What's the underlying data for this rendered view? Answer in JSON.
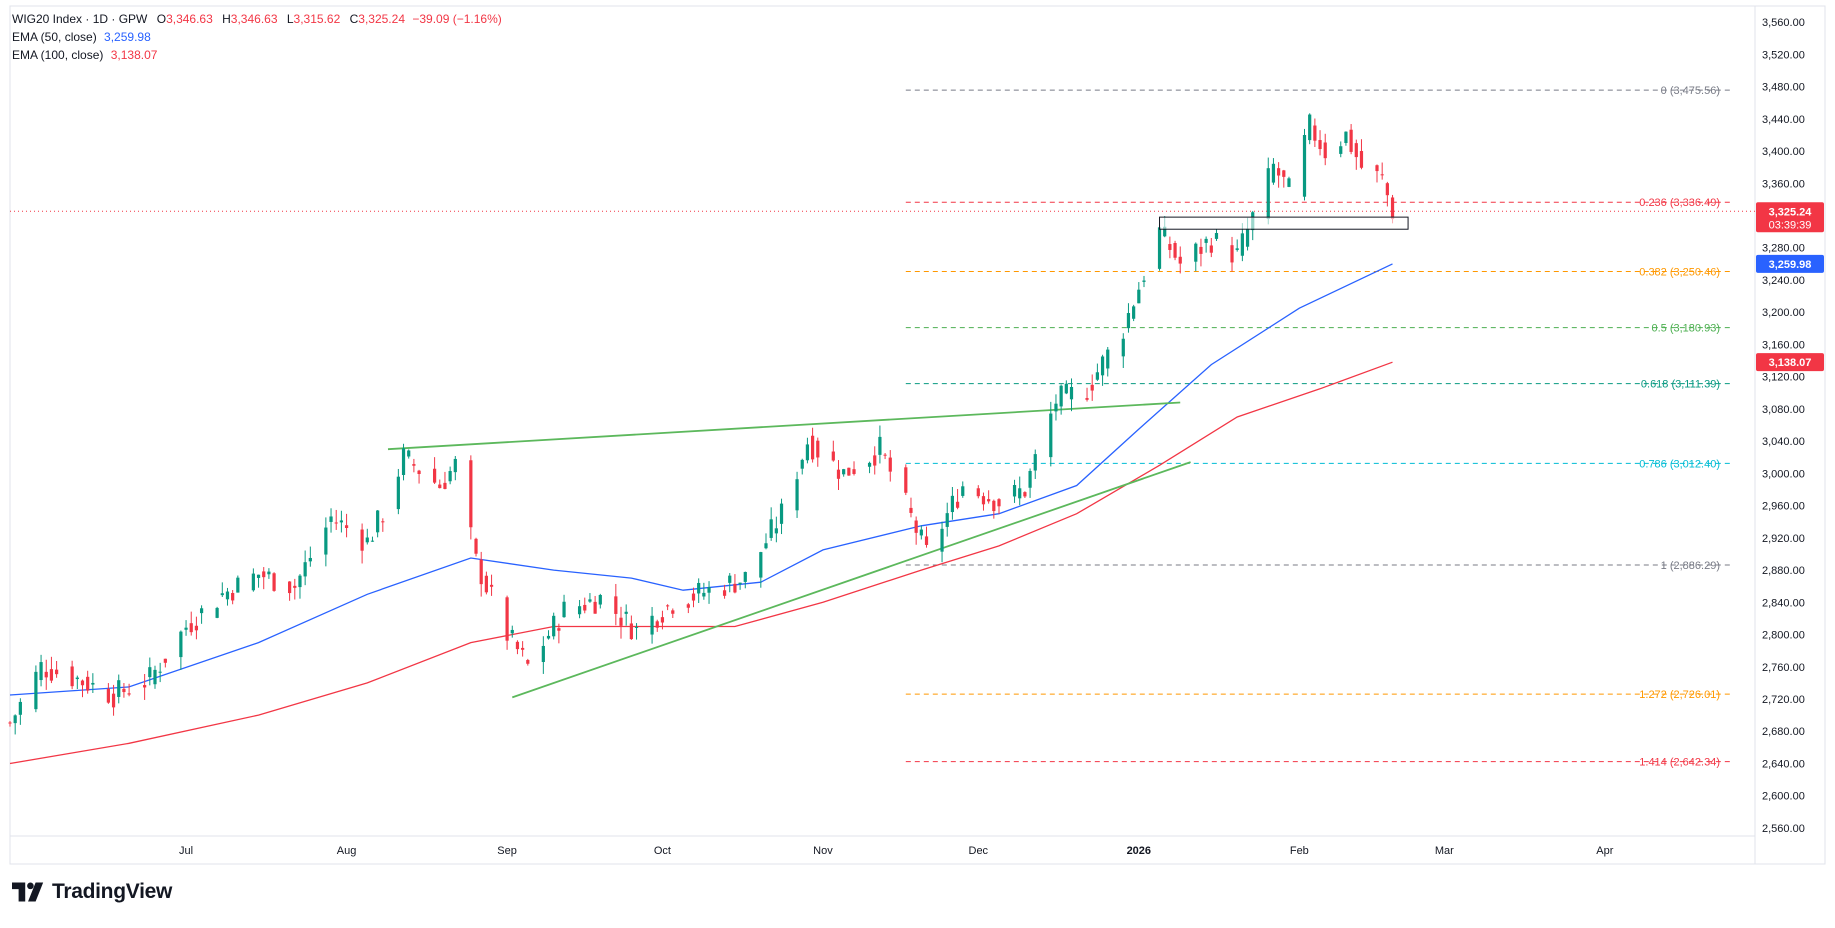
{
  "legend": {
    "symbol": "WIG20 Index · 1D · GPW",
    "open_label": "O",
    "open": "3,346.63",
    "high_label": "H",
    "high": "3,346.63",
    "low_label": "L",
    "low": "3,315.62",
    "close_label": "C",
    "close": "3,325.24",
    "change": "−39.09 (−1.16%)",
    "ema50_label": "EMA (50, close)",
    "ema50": "3,259.98",
    "ema100_label": "EMA (100, close)",
    "ema100": "3,138.07"
  },
  "brand": {
    "name": "TradingView"
  },
  "colors": {
    "up": "#089981",
    "down": "#f23645",
    "ema50": "#2962ff",
    "ema100": "#f23645",
    "trend": "#5cb85c"
  },
  "chart_data": {
    "type": "candlestick",
    "y_range": [
      2550,
      3580
    ],
    "y_ticks": [
      "3,560.00",
      "3,520.00",
      "3,480.00",
      "3,440.00",
      "3,400.00",
      "3,360.00",
      "3,320.00",
      "3,280.00",
      "3,240.00",
      "3,200.00",
      "3,160.00",
      "3,120.00",
      "3,080.00",
      "3,040.00",
      "3,000.00",
      "2,960.00",
      "2,920.00",
      "2,880.00",
      "2,840.00",
      "2,800.00",
      "2,760.00",
      "2,720.00",
      "2,680.00",
      "2,640.00",
      "2,600.00",
      "2,560.00"
    ],
    "y_tick_values": [
      3560,
      3520,
      3480,
      3440,
      3400,
      3360,
      3320,
      3280,
      3240,
      3200,
      3160,
      3120,
      3080,
      3040,
      3000,
      2960,
      2920,
      2880,
      2840,
      2800,
      2760,
      2720,
      2680,
      2640,
      2600,
      2560
    ],
    "x_range": [
      "2025-05-28",
      "2026-04-30"
    ],
    "x_ticks": [
      {
        "label": "Jul",
        "date": "2025-07-01",
        "bold": false
      },
      {
        "label": "Aug",
        "date": "2025-08-01",
        "bold": false
      },
      {
        "label": "Sep",
        "date": "2025-09-01",
        "bold": false
      },
      {
        "label": "Oct",
        "date": "2025-10-01",
        "bold": false
      },
      {
        "label": "Nov",
        "date": "2025-11-01",
        "bold": false
      },
      {
        "label": "Dec",
        "date": "2025-12-01",
        "bold": false
      },
      {
        "label": "2026",
        "date": "2026-01-01",
        "bold": true
      },
      {
        "label": "Feb",
        "date": "2026-02-01",
        "bold": false
      },
      {
        "label": "Mar",
        "date": "2026-03-01",
        "bold": false
      },
      {
        "label": "Apr",
        "date": "2026-04-01",
        "bold": false
      }
    ],
    "price_anchors": [
      [
        "2025-05-28",
        2690
      ],
      [
        "2025-06-03",
        2760
      ],
      [
        "2025-06-10",
        2745
      ],
      [
        "2025-06-17",
        2725
      ],
      [
        "2025-06-24",
        2745
      ],
      [
        "2025-07-01",
        2810
      ],
      [
        "2025-07-08",
        2850
      ],
      [
        "2025-07-15",
        2875
      ],
      [
        "2025-07-22",
        2860
      ],
      [
        "2025-07-29",
        2945
      ],
      [
        "2025-08-05",
        2915
      ],
      [
        "2025-08-08",
        2950
      ],
      [
        "2025-08-12",
        3020
      ],
      [
        "2025-08-19",
        2985
      ],
      [
        "2025-08-22",
        3010
      ],
      [
        "2025-08-26",
        2890
      ],
      [
        "2025-09-01",
        2800
      ],
      [
        "2025-09-05",
        2760
      ],
      [
        "2025-09-12",
        2830
      ],
      [
        "2025-09-19",
        2845
      ],
      [
        "2025-09-26",
        2805
      ],
      [
        "2025-10-03",
        2840
      ],
      [
        "2025-10-10",
        2855
      ],
      [
        "2025-10-17",
        2870
      ],
      [
        "2025-10-24",
        2950
      ],
      [
        "2025-10-29",
        3040
      ],
      [
        "2025-11-05",
        3000
      ],
      [
        "2025-11-12",
        3030
      ],
      [
        "2025-11-17",
        2960
      ],
      [
        "2025-11-21",
        2900
      ],
      [
        "2025-11-28",
        2985
      ],
      [
        "2025-12-05",
        2965
      ],
      [
        "2025-12-10",
        2980
      ],
      [
        "2025-12-16",
        3090
      ],
      [
        "2025-12-22",
        3105
      ],
      [
        "2025-12-29",
        3180
      ],
      [
        "2026-01-05",
        3300
      ],
      [
        "2026-01-09",
        3260
      ],
      [
        "2026-01-15",
        3290
      ],
      [
        "2026-01-20",
        3270
      ],
      [
        "2026-01-27",
        3380
      ],
      [
        "2026-01-30",
        3350
      ],
      [
        "2026-02-03",
        3430
      ],
      [
        "2026-02-06",
        3400
      ],
      [
        "2026-02-10",
        3420
      ],
      [
        "2026-02-13",
        3380
      ],
      [
        "2026-02-17",
        3364
      ],
      [
        "2026-02-19",
        3325
      ]
    ],
    "ema50": [
      [
        "2025-05-28",
        2725
      ],
      [
        "2025-06-20",
        2735
      ],
      [
        "2025-07-15",
        2790
      ],
      [
        "2025-08-05",
        2850
      ],
      [
        "2025-08-25",
        2895
      ],
      [
        "2025-09-10",
        2880
      ],
      [
        "2025-09-25",
        2870
      ],
      [
        "2025-10-05",
        2855
      ],
      [
        "2025-10-20",
        2865
      ],
      [
        "2025-11-01",
        2905
      ],
      [
        "2025-11-20",
        2935
      ],
      [
        "2025-12-05",
        2950
      ],
      [
        "2025-12-20",
        2985
      ],
      [
        "2026-01-01",
        3055
      ],
      [
        "2026-01-15",
        3135
      ],
      [
        "2026-02-01",
        3205
      ],
      [
        "2026-02-19",
        3260
      ]
    ],
    "ema100": [
      [
        "2025-05-28",
        2640
      ],
      [
        "2025-06-20",
        2665
      ],
      [
        "2025-07-15",
        2700
      ],
      [
        "2025-08-05",
        2740
      ],
      [
        "2025-08-25",
        2790
      ],
      [
        "2025-09-10",
        2810
      ],
      [
        "2025-09-25",
        2810
      ],
      [
        "2025-10-15",
        2810
      ],
      [
        "2025-11-01",
        2840
      ],
      [
        "2025-11-20",
        2880
      ],
      [
        "2025-12-05",
        2910
      ],
      [
        "2025-12-20",
        2950
      ],
      [
        "2026-01-05",
        3010
      ],
      [
        "2026-01-20",
        3070
      ],
      [
        "2026-02-05",
        3105
      ],
      [
        "2026-02-19",
        3138
      ]
    ],
    "trendlines": [
      {
        "from": [
          "2025-08-09",
          3030
        ],
        "to": [
          "2026-01-09",
          3088
        ]
      },
      {
        "from": [
          "2025-09-02",
          2722
        ],
        "to": [
          "2026-01-11",
          3014
        ]
      }
    ],
    "zone": {
      "from": "2026-01-05",
      "to": "2026-02-22",
      "low": 3303,
      "high": 3318
    },
    "fib_start_date": "2025-11-17",
    "fib_levels": [
      {
        "label": "0 (3,475.56)",
        "value": 3475.56,
        "color": "#787b86"
      },
      {
        "label": "0.236 (3,336.49)",
        "value": 3336.49,
        "color": "#f23645"
      },
      {
        "label": "0.382 (3,250.46)",
        "value": 3250.46,
        "color": "#ff9800"
      },
      {
        "label": "0.5 (3,180.93)",
        "value": 3180.93,
        "color": "#4caf50"
      },
      {
        "label": "0.618 (3,111.39)",
        "value": 3111.39,
        "color": "#089981"
      },
      {
        "label": "0.786 (3,012.40)",
        "value": 3012.4,
        "color": "#00bcd4"
      },
      {
        "label": "1 (2,886.29)",
        "value": 2886.29,
        "color": "#787b86"
      },
      {
        "label": "1.272 (2,726.01)",
        "value": 2726.01,
        "color": "#ff9800"
      },
      {
        "label": "1.414 (2,642.34)",
        "value": 2642.34,
        "color": "#f23645"
      }
    ],
    "last_price": {
      "value": 3325.24,
      "label": "3,325.24",
      "countdown": "03:39:39",
      "color": "#f23645"
    },
    "ema50_badge": {
      "value": 3259.98,
      "label": "3,259.98",
      "color": "#2962ff"
    },
    "ema100_badge": {
      "value": 3138.07,
      "label": "3,138.07",
      "color": "#f23645"
    }
  }
}
